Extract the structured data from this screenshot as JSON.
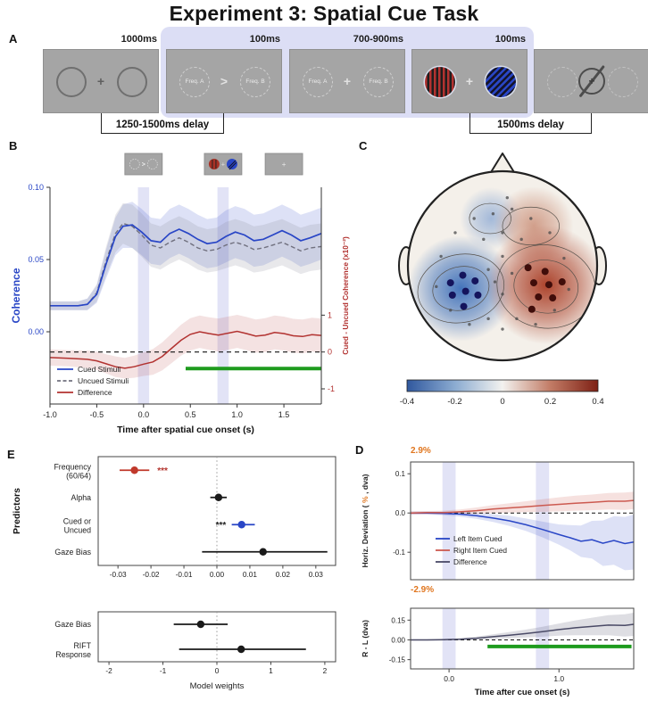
{
  "title": "Experiment 3: Spatial Cue Task",
  "panels": {
    "a": "A",
    "b": "B",
    "c": "C",
    "d": "D",
    "e": "E"
  },
  "panel_a": {
    "timings": [
      "1000ms",
      "100ms",
      "700-900ms",
      "100ms"
    ],
    "freq_a": "Freq. A",
    "freq_b": "Freq. B",
    "cue_symbol": ">",
    "fixation_symbol": "+",
    "delay_left": "1250-1500ms delay",
    "delay_right": "1500ms delay"
  },
  "chart_data": [
    {
      "id": "coherence",
      "type": "line",
      "xlabel": "Time after spatial cue onset (s)",
      "ylabel_left": "Coherence",
      "ylabel_right": "Cued - Uncued  Coherence (x10⁻²)",
      "xlim": [
        -1.0,
        1.9
      ],
      "ylim_left": [
        -0.05,
        0.1
      ],
      "yticks_left": [
        "0.00",
        "0.05",
        "0.10"
      ],
      "yticks_left_v": [
        0.0,
        0.05,
        0.1
      ],
      "yticks_right": [
        1,
        0,
        -1
      ],
      "right_zero_frac": 0.76,
      "right_unit_frac": 0.17,
      "xticks": [
        -1.0,
        -0.5,
        0.0,
        0.5,
        1.0,
        1.5
      ],
      "xtick_labels": [
        "-1.0",
        "-0.5",
        "0.0",
        "0.5",
        "1.0",
        "1.5"
      ],
      "shade_x": [
        0.0,
        0.85
      ],
      "shade_w": 0.12,
      "thumb_x": [
        0.0,
        0.85,
        1.5
      ],
      "thumbs": [
        "cue",
        "stimuli",
        "fixation"
      ],
      "colors": {
        "cued": "#2946c6",
        "uncued": "#70707e",
        "difference": "#b23230",
        "sig": "#1e9b1e",
        "shade": "#d5d7f2"
      },
      "legend": [
        {
          "label": "Cued Stimuli",
          "color": "#2946c6",
          "dash": false
        },
        {
          "label": "Uncued Stimuli",
          "color": "#70707e",
          "dash": true
        },
        {
          "label": "Difference",
          "color": "#b23230",
          "dash": false
        }
      ],
      "sig_bar": {
        "x0": 0.45,
        "x1": 1.9,
        "y": -0.45
      },
      "series": {
        "cued": [
          [
            -1.0,
            0.018,
            0.003
          ],
          [
            -0.85,
            0.018,
            0.003
          ],
          [
            -0.7,
            0.018,
            0.003
          ],
          [
            -0.6,
            0.019,
            0.004
          ],
          [
            -0.5,
            0.026,
            0.006
          ],
          [
            -0.4,
            0.047,
            0.01
          ],
          [
            -0.3,
            0.066,
            0.013
          ],
          [
            -0.22,
            0.073,
            0.015
          ],
          [
            -0.12,
            0.074,
            0.016
          ],
          [
            -0.02,
            0.069,
            0.016
          ],
          [
            0.08,
            0.063,
            0.016
          ],
          [
            0.18,
            0.062,
            0.016
          ],
          [
            0.28,
            0.068,
            0.017
          ],
          [
            0.38,
            0.071,
            0.017
          ],
          [
            0.48,
            0.068,
            0.017
          ],
          [
            0.58,
            0.064,
            0.017
          ],
          [
            0.68,
            0.061,
            0.017
          ],
          [
            0.78,
            0.062,
            0.017
          ],
          [
            0.88,
            0.066,
            0.018
          ],
          [
            0.98,
            0.069,
            0.018
          ],
          [
            1.08,
            0.067,
            0.018
          ],
          [
            1.18,
            0.063,
            0.018
          ],
          [
            1.28,
            0.064,
            0.018
          ],
          [
            1.38,
            0.067,
            0.018
          ],
          [
            1.48,
            0.07,
            0.018
          ],
          [
            1.58,
            0.067,
            0.018
          ],
          [
            1.68,
            0.063,
            0.018
          ],
          [
            1.78,
            0.065,
            0.018
          ],
          [
            1.9,
            0.068,
            0.018
          ]
        ],
        "uncued": [
          [
            -1.0,
            0.018,
            0.003
          ],
          [
            -0.85,
            0.018,
            0.003
          ],
          [
            -0.7,
            0.018,
            0.003
          ],
          [
            -0.6,
            0.019,
            0.004
          ],
          [
            -0.5,
            0.027,
            0.006
          ],
          [
            -0.4,
            0.049,
            0.01
          ],
          [
            -0.3,
            0.068,
            0.013
          ],
          [
            -0.22,
            0.075,
            0.014
          ],
          [
            -0.12,
            0.073,
            0.015
          ],
          [
            -0.02,
            0.067,
            0.015
          ],
          [
            0.08,
            0.06,
            0.015
          ],
          [
            0.18,
            0.058,
            0.015
          ],
          [
            0.28,
            0.062,
            0.015
          ],
          [
            0.38,
            0.065,
            0.015
          ],
          [
            0.48,
            0.062,
            0.015
          ],
          [
            0.58,
            0.058,
            0.015
          ],
          [
            0.68,
            0.056,
            0.015
          ],
          [
            0.78,
            0.057,
            0.015
          ],
          [
            0.88,
            0.06,
            0.016
          ],
          [
            0.98,
            0.062,
            0.016
          ],
          [
            1.08,
            0.06,
            0.016
          ],
          [
            1.18,
            0.057,
            0.016
          ],
          [
            1.28,
            0.058,
            0.016
          ],
          [
            1.38,
            0.06,
            0.016
          ],
          [
            1.48,
            0.062,
            0.016
          ],
          [
            1.58,
            0.059,
            0.016
          ],
          [
            1.68,
            0.056,
            0.016
          ],
          [
            1.78,
            0.058,
            0.016
          ],
          [
            1.9,
            0.059,
            0.016
          ]
        ],
        "difference": [
          [
            -1.0,
            -0.15,
            0.22
          ],
          [
            -0.8,
            -0.17,
            0.22
          ],
          [
            -0.6,
            -0.2,
            0.24
          ],
          [
            -0.5,
            -0.24,
            0.25
          ],
          [
            -0.4,
            -0.32,
            0.26
          ],
          [
            -0.3,
            -0.4,
            0.28
          ],
          [
            -0.2,
            -0.44,
            0.28
          ],
          [
            -0.1,
            -0.4,
            0.3
          ],
          [
            0.0,
            -0.33,
            0.32
          ],
          [
            0.1,
            -0.27,
            0.35
          ],
          [
            0.2,
            -0.12,
            0.38
          ],
          [
            0.3,
            0.1,
            0.4
          ],
          [
            0.4,
            0.32,
            0.42
          ],
          [
            0.5,
            0.48,
            0.44
          ],
          [
            0.6,
            0.55,
            0.44
          ],
          [
            0.7,
            0.5,
            0.44
          ],
          [
            0.8,
            0.46,
            0.45
          ],
          [
            0.9,
            0.51,
            0.45
          ],
          [
            1.0,
            0.56,
            0.45
          ],
          [
            1.1,
            0.5,
            0.45
          ],
          [
            1.2,
            0.43,
            0.45
          ],
          [
            1.3,
            0.46,
            0.46
          ],
          [
            1.4,
            0.53,
            0.46
          ],
          [
            1.5,
            0.5,
            0.46
          ],
          [
            1.6,
            0.44,
            0.46
          ],
          [
            1.7,
            0.42,
            0.46
          ],
          [
            1.8,
            0.47,
            0.46
          ],
          [
            1.9,
            0.45,
            0.46
          ]
        ]
      }
    },
    {
      "id": "topomap",
      "type": "heatmap",
      "colorbar_ticks": [
        "-0.4",
        "-0.2",
        "0",
        "0.2",
        "0.4"
      ],
      "left_cluster_dots": [
        [
          -0.55,
          0.18
        ],
        [
          -0.42,
          0.1
        ],
        [
          -0.29,
          0.16
        ],
        [
          -0.53,
          0.31
        ],
        [
          -0.39,
          0.27
        ],
        [
          -0.26,
          0.31
        ],
        [
          -0.41,
          0.43
        ]
      ],
      "right_cluster_dots": [
        [
          0.27,
          0.02
        ],
        [
          0.45,
          0.06
        ],
        [
          0.33,
          0.18
        ],
        [
          0.49,
          0.2
        ],
        [
          0.63,
          0.17
        ],
        [
          0.38,
          0.33
        ],
        [
          0.53,
          0.34
        ],
        [
          0.31,
          0.46
        ]
      ],
      "sensor_dots": [
        [
          -0.1,
          -0.55
        ],
        [
          0.1,
          -0.6
        ],
        [
          -0.3,
          -0.5
        ],
        [
          0.3,
          -0.5
        ],
        [
          -0.5,
          -0.35
        ],
        [
          0.5,
          -0.35
        ],
        [
          0.0,
          -0.35
        ],
        [
          -0.2,
          -0.28
        ],
        [
          0.2,
          -0.28
        ],
        [
          -0.65,
          -0.1
        ],
        [
          0.65,
          -0.08
        ],
        [
          0.0,
          -0.1
        ],
        [
          -0.15,
          0.04
        ],
        [
          0.1,
          0.08
        ],
        [
          -0.7,
          0.22
        ],
        [
          0.7,
          0.25
        ],
        [
          0.0,
          0.3
        ],
        [
          -0.15,
          0.56
        ],
        [
          0.15,
          0.56
        ],
        [
          -0.35,
          0.62
        ],
        [
          0.35,
          0.62
        ],
        [
          0.0,
          0.67
        ],
        [
          -0.55,
          0.47
        ],
        [
          0.55,
          0.47
        ],
        [
          0.05,
          -0.72
        ],
        [
          -0.08,
          0.17
        ]
      ]
    },
    {
      "id": "model_weights_top",
      "type": "scatter",
      "ylabel": "Predictors",
      "xlim": [
        -0.036,
        0.036
      ],
      "xticks": [
        -0.03,
        -0.02,
        -0.01,
        0.0,
        0.01,
        0.02,
        0.03
      ],
      "xtick_labels": [
        "-0.03",
        "-0.02",
        "-0.01",
        "0.00",
        "0.01",
        "0.02",
        "0.03"
      ],
      "rows": [
        {
          "label1": "Frequency",
          "label2": "(60/64)",
          "value": -0.025,
          "lo": -0.0295,
          "hi": -0.0205,
          "color": "#c0392b",
          "sig": "***",
          "sig_x": -0.0165,
          "sig_color": "#b3342e"
        },
        {
          "label1": "Alpha",
          "label2": "",
          "value": 0.0005,
          "lo": -0.002,
          "hi": 0.003,
          "color": "#1a1a1a"
        },
        {
          "label1": "Cued or",
          "label2": "Uncued",
          "value": 0.0075,
          "lo": 0.0045,
          "hi": 0.0115,
          "color": "#2946c6",
          "sig": "***",
          "sig_x": 0.0012,
          "sig_color": "#222222"
        },
        {
          "label1": "Gaze Bias",
          "label2": "",
          "value": 0.014,
          "lo": -0.0045,
          "hi": 0.0335,
          "color": "#1a1a1a"
        }
      ]
    },
    {
      "id": "model_weights_bottom",
      "type": "scatter",
      "xlabel": "Model weights",
      "xlim": [
        -2.2,
        2.2
      ],
      "xticks": [
        -2,
        -1,
        0,
        1,
        2
      ],
      "xtick_labels": [
        "-2",
        "-1",
        "0",
        "1",
        "2"
      ],
      "rows": [
        {
          "label1": "Gaze Bias",
          "label2": "",
          "value": -0.3,
          "lo": -0.8,
          "hi": 0.2,
          "color": "#1a1a1a"
        },
        {
          "label1": "RIFT",
          "label2": "Response",
          "value": 0.45,
          "lo": -0.7,
          "hi": 1.65,
          "color": "#1a1a1a"
        }
      ]
    },
    {
      "id": "gaze_top",
      "type": "line",
      "ylabel_parts": [
        "Horiz. Deviation ( ",
        "%",
        " , dva)"
      ],
      "pct_top": "2.9%",
      "pct_bottom": "-2.9%",
      "xlim": [
        -0.35,
        1.68
      ],
      "ylim": [
        -0.17,
        0.13
      ],
      "yticks": [
        0.1,
        0.0,
        -0.1
      ],
      "ytick_labels": [
        "0.1",
        "0.0",
        "-0.1"
      ],
      "shade_x": [
        0.0,
        0.85
      ],
      "shade_w": 0.12,
      "colors": {
        "left": "#2946c6",
        "right": "#cc5a50",
        "difference": "#4a4a66",
        "sig": "#1e9b1e",
        "pct": "#e0761f"
      },
      "legend": [
        {
          "label": "Left Item Cued",
          "color": "#2946c6"
        },
        {
          "label": "Right Item Cued",
          "color": "#cc5a50"
        },
        {
          "label": "Difference",
          "color": "#4a4a66"
        }
      ],
      "series": {
        "left": [
          [
            -0.35,
            0.0,
            0.004
          ],
          [
            -0.2,
            0.0,
            0.004
          ],
          [
            -0.05,
            -0.001,
            0.005
          ],
          [
            0.1,
            -0.003,
            0.006
          ],
          [
            0.25,
            -0.007,
            0.008
          ],
          [
            0.4,
            -0.013,
            0.01
          ],
          [
            0.55,
            -0.02,
            0.013
          ],
          [
            0.7,
            -0.03,
            0.016
          ],
          [
            0.85,
            -0.042,
            0.02
          ],
          [
            1.0,
            -0.055,
            0.026
          ],
          [
            1.1,
            -0.063,
            0.032
          ],
          [
            1.2,
            -0.072,
            0.04
          ],
          [
            1.3,
            -0.068,
            0.048
          ],
          [
            1.4,
            -0.077,
            0.058
          ],
          [
            1.5,
            -0.07,
            0.062
          ],
          [
            1.6,
            -0.078,
            0.068
          ],
          [
            1.68,
            -0.074,
            0.07
          ]
        ],
        "right": [
          [
            -0.35,
            0.0,
            0.004
          ],
          [
            -0.2,
            0.001,
            0.004
          ],
          [
            -0.05,
            0.001,
            0.005
          ],
          [
            0.1,
            0.003,
            0.006
          ],
          [
            0.25,
            0.006,
            0.008
          ],
          [
            0.4,
            0.01,
            0.01
          ],
          [
            0.55,
            0.013,
            0.012
          ],
          [
            0.7,
            0.016,
            0.014
          ],
          [
            0.85,
            0.019,
            0.016
          ],
          [
            1.0,
            0.022,
            0.018
          ],
          [
            1.15,
            0.025,
            0.019
          ],
          [
            1.3,
            0.027,
            0.02
          ],
          [
            1.45,
            0.03,
            0.021
          ],
          [
            1.6,
            0.03,
            0.022
          ],
          [
            1.68,
            0.032,
            0.022
          ]
        ]
      }
    },
    {
      "id": "gaze_bottom",
      "type": "line",
      "ylabel": "R - L (dva)",
      "xlabel": "Time after cue onset (s)",
      "xlim": [
        -0.35,
        1.68
      ],
      "ylim": [
        -0.22,
        0.24
      ],
      "yticks": [
        0.15,
        0.0,
        -0.15
      ],
      "ytick_labels": [
        "0.15",
        "0.00",
        "-0.15"
      ],
      "xticks": [
        0.0,
        1.0
      ],
      "xtick_labels": [
        "0.0",
        "1.0"
      ],
      "shade_x": [
        0.0,
        0.85
      ],
      "shade_w": 0.12,
      "sig_bar": {
        "x0": 0.35,
        "x1": 1.66,
        "y": -0.05
      },
      "series": {
        "difference": [
          [
            -0.35,
            0.0,
            0.005
          ],
          [
            -0.2,
            0.0,
            0.005
          ],
          [
            -0.05,
            0.001,
            0.006
          ],
          [
            0.1,
            0.005,
            0.008
          ],
          [
            0.25,
            0.013,
            0.012
          ],
          [
            0.4,
            0.024,
            0.018
          ],
          [
            0.55,
            0.036,
            0.024
          ],
          [
            0.7,
            0.048,
            0.03
          ],
          [
            0.85,
            0.062,
            0.038
          ],
          [
            1.0,
            0.078,
            0.046
          ],
          [
            1.15,
            0.092,
            0.056
          ],
          [
            1.3,
            0.102,
            0.066
          ],
          [
            1.45,
            0.112,
            0.076
          ],
          [
            1.6,
            0.11,
            0.085
          ],
          [
            1.68,
            0.118,
            0.088
          ]
        ]
      }
    }
  ]
}
